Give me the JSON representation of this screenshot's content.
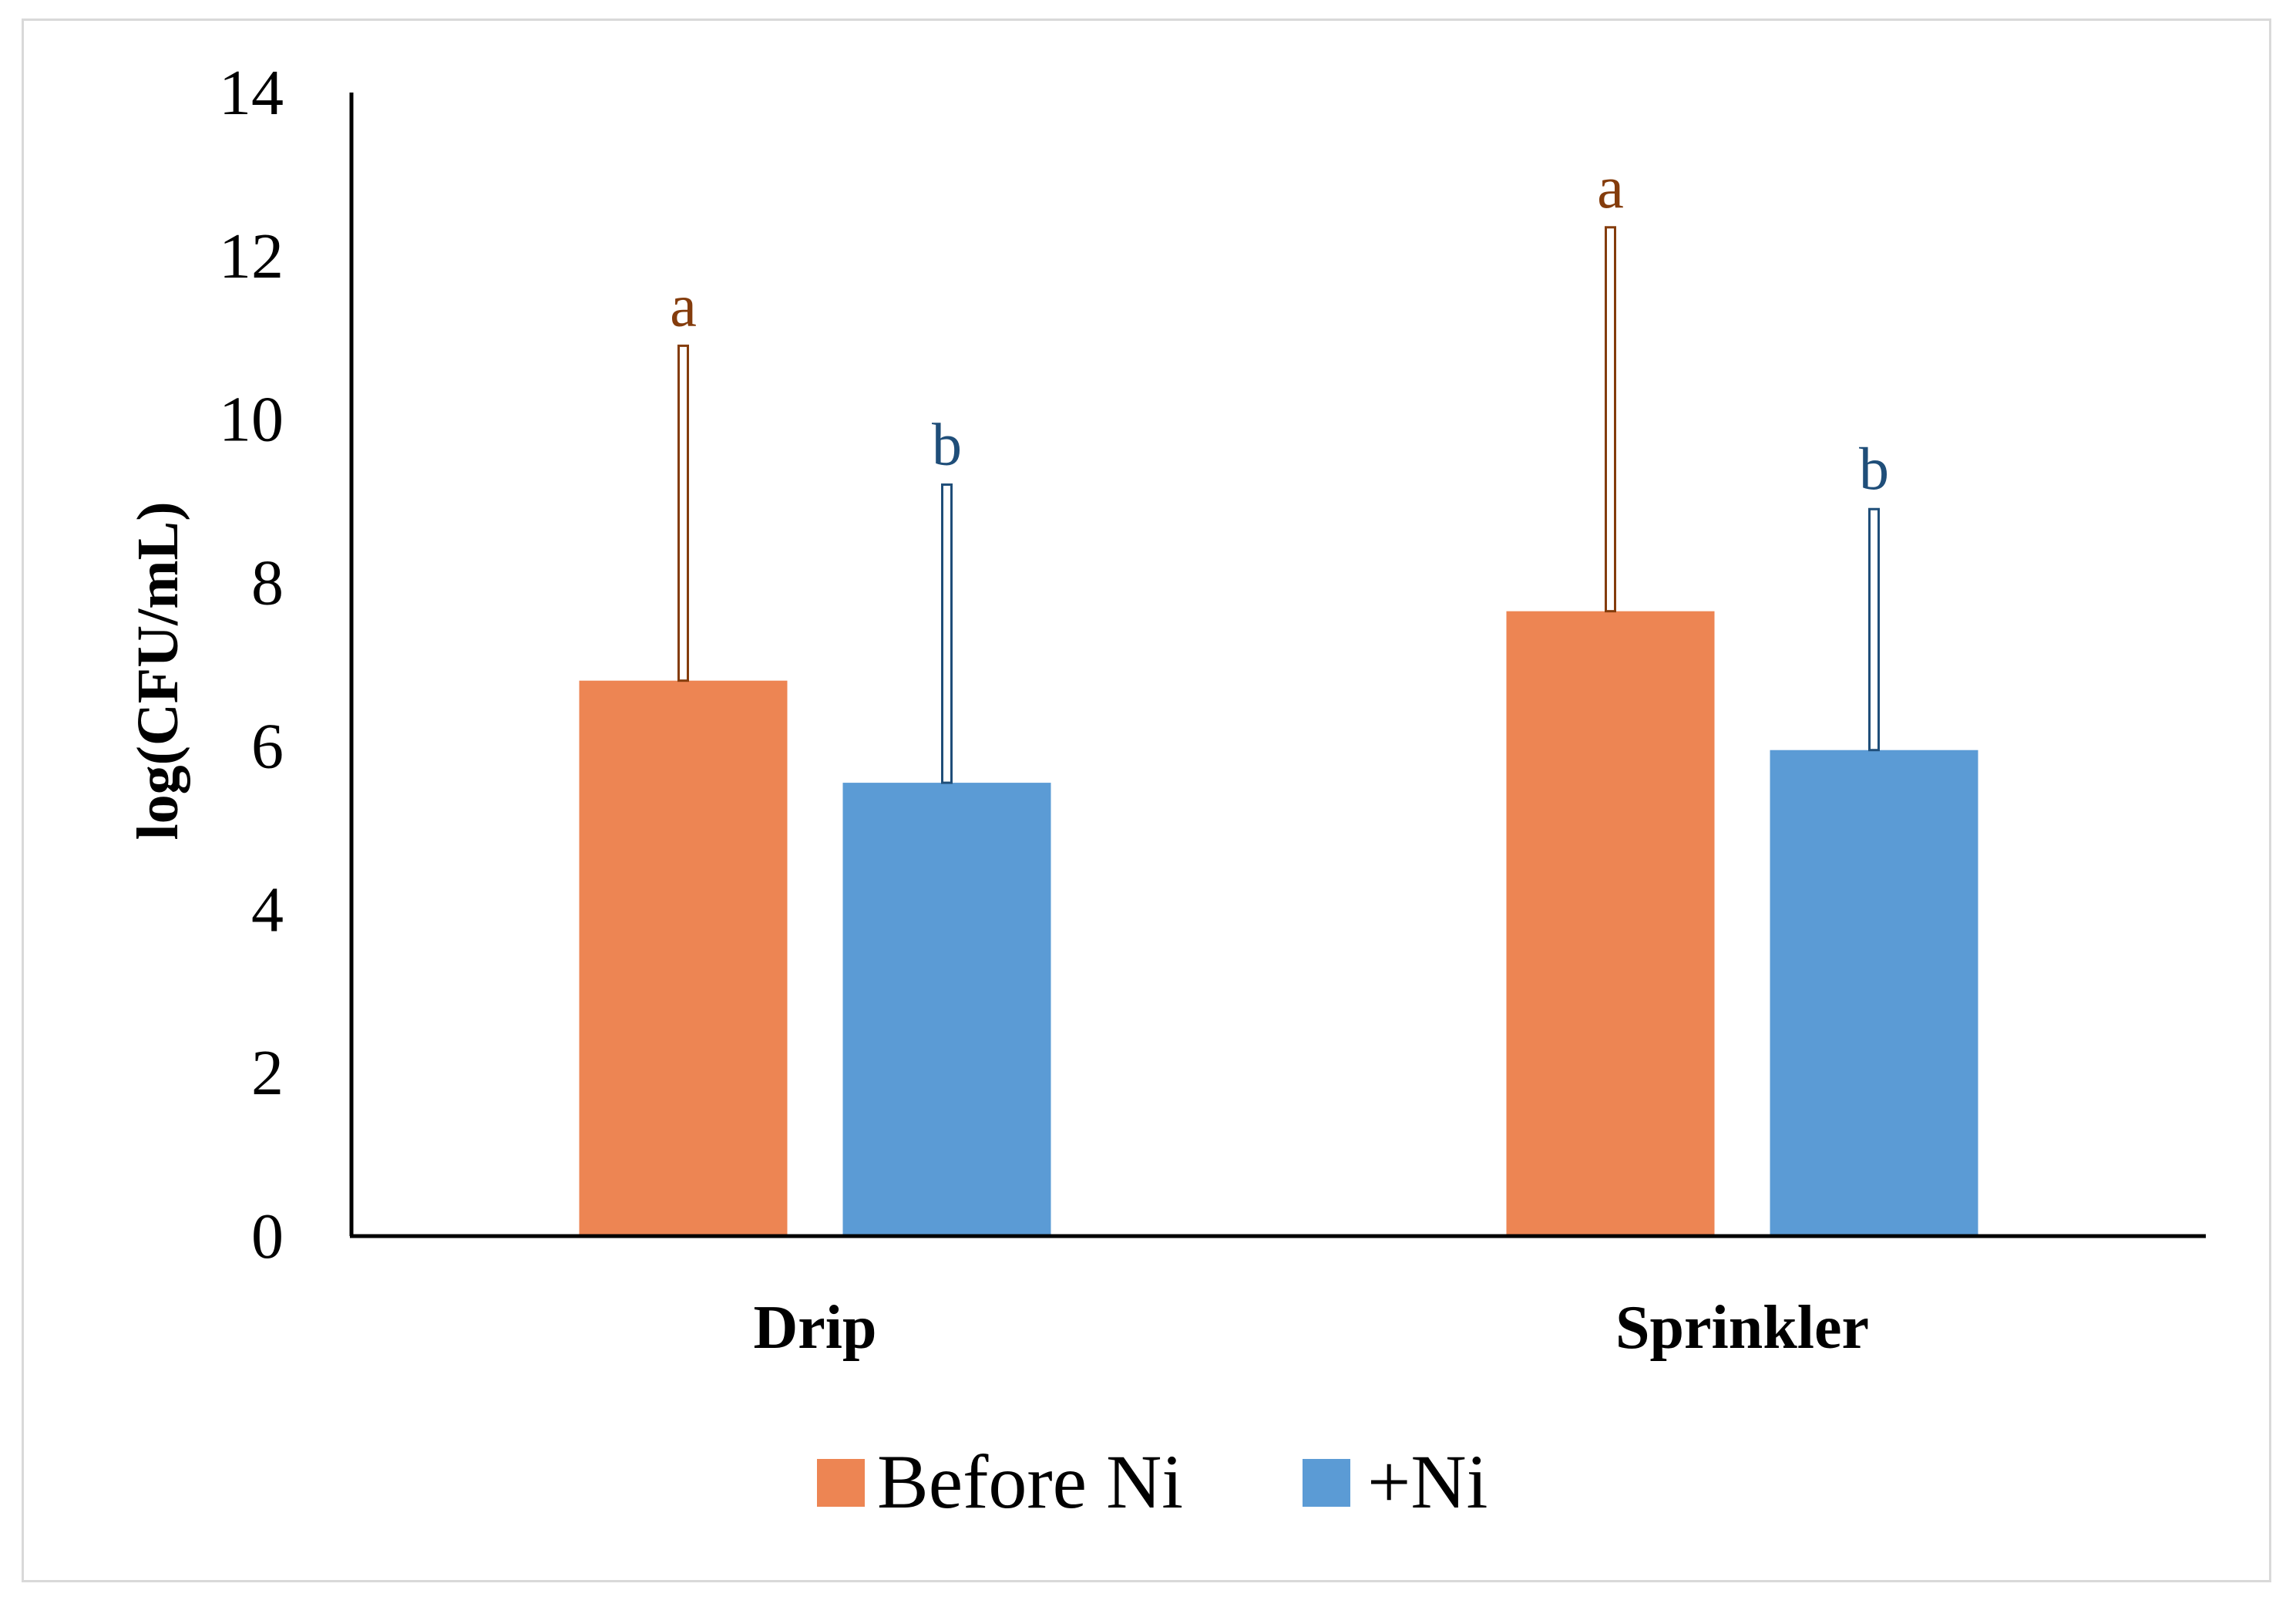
{
  "chart_data": {
    "type": "bar",
    "title": "",
    "xlabel": "",
    "ylabel": "log(CFU/mL)",
    "ylim": [
      0,
      14
    ],
    "yticks": [
      0,
      2,
      4,
      6,
      8,
      10,
      12,
      14
    ],
    "categories": [
      "Drip",
      "Sprinkler"
    ],
    "series": [
      {
        "name": "Before Ni",
        "color": "#ED8553",
        "letter_color": "#843C0C",
        "values": [
          6.8,
          7.65
        ],
        "error_plus": [
          4.1,
          4.7
        ],
        "letters": [
          "a",
          "a"
        ]
      },
      {
        "name": "+Ni",
        "color": "#5B9BD5",
        "letter_color": "#1F4E79",
        "values": [
          5.55,
          5.95
        ],
        "error_plus": [
          3.65,
          2.95
        ],
        "letters": [
          "b",
          "b"
        ]
      }
    ],
    "legend_position": "bottom",
    "grid": false
  }
}
